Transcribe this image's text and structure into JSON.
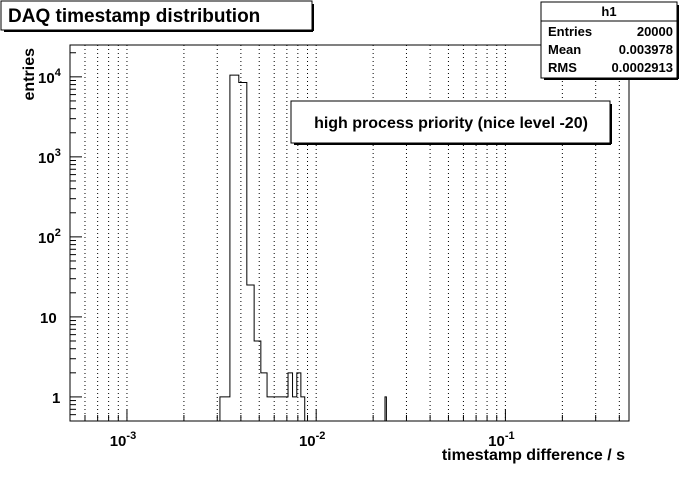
{
  "chart_data": {
    "type": "histogram",
    "title": "DAQ timestamp distribution",
    "annotation": "high process priority (nice level -20)",
    "xlabel": "timestamp difference / s",
    "ylabel": "entries",
    "xscale": "log",
    "yscale": "log",
    "xlim": [
      0.0005,
      0.45
    ],
    "ylim": [
      0.5,
      25000
    ],
    "grid": "dotted vertical",
    "legend_position": "top-right",
    "stats": {
      "name": "h1",
      "rows": [
        {
          "label": "Entries",
          "value": "20000"
        },
        {
          "label": "Mean",
          "value": "0.003978"
        },
        {
          "label": "RMS",
          "value": "0.0002913"
        }
      ]
    },
    "x_tick_labels": [
      {
        "value": 0.001,
        "base": "10",
        "exp": "-3"
      },
      {
        "value": 0.01,
        "base": "10",
        "exp": "-2"
      },
      {
        "value": 0.1,
        "base": "10",
        "exp": "-1"
      }
    ],
    "y_tick_labels": [
      {
        "value": 10000,
        "base": "10",
        "exp": "4"
      },
      {
        "value": 1000,
        "base": "10",
        "exp": "3"
      },
      {
        "value": 100,
        "base": "10",
        "exp": "2"
      },
      {
        "value": 10,
        "base": "10",
        "exp": ""
      },
      {
        "value": 1,
        "base": "1",
        "exp": ""
      }
    ],
    "bins": [
      {
        "x_low": 0.0031,
        "x_high": 0.0035,
        "count": 1
      },
      {
        "x_low": 0.0035,
        "x_high": 0.0039,
        "count": 10500
      },
      {
        "x_low": 0.0039,
        "x_high": 0.0043,
        "count": 8500
      },
      {
        "x_low": 0.0043,
        "x_high": 0.0047,
        "count": 25
      },
      {
        "x_low": 0.0047,
        "x_high": 0.0051,
        "count": 5
      },
      {
        "x_low": 0.0051,
        "x_high": 0.0055,
        "count": 2
      },
      {
        "x_low": 0.0055,
        "x_high": 0.0059,
        "count": 1
      },
      {
        "x_low": 0.0059,
        "x_high": 0.0067,
        "count": 1
      },
      {
        "x_low": 0.0067,
        "x_high": 0.0071,
        "count": 1
      },
      {
        "x_low": 0.0071,
        "x_high": 0.0075,
        "count": 2
      },
      {
        "x_low": 0.0075,
        "x_high": 0.0079,
        "count": 1
      },
      {
        "x_low": 0.0079,
        "x_high": 0.0083,
        "count": 2
      },
      {
        "x_low": 0.0083,
        "x_high": 0.0087,
        "count": 1
      },
      {
        "x_low": 0.0231,
        "x_high": 0.0235,
        "count": 1
      }
    ]
  }
}
